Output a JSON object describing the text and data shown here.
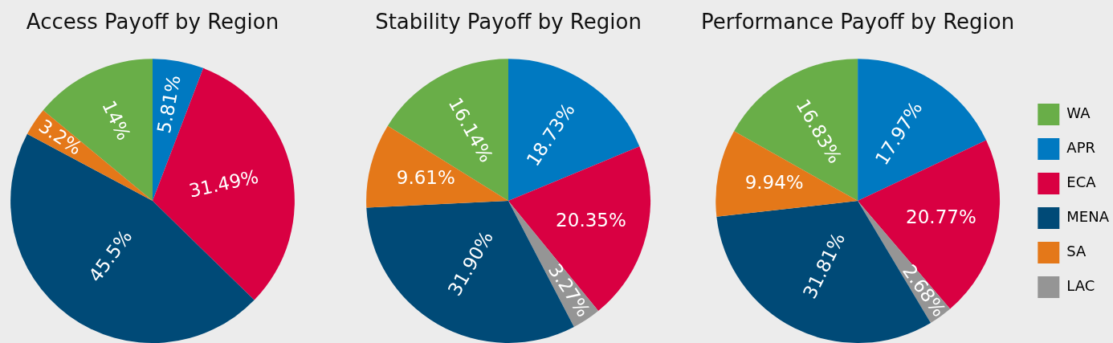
{
  "chart_data": [
    {
      "type": "pie",
      "title": "Access Payoff by Region",
      "categories": [
        null,
        null,
        null,
        null,
        null
      ],
      "values": [
        14,
        5.81,
        31.49,
        45.5,
        3.2
      ],
      "colors": [
        "#69ae48",
        "#0079c1",
        "#d90042",
        "#004a77",
        "#e47819"
      ],
      "value_labels": [
        "14%",
        "5.81%",
        "31.49%",
        "45.5%",
        "3.2%"
      ]
    },
    {
      "type": "pie",
      "title": "Stability Payoff by Region",
      "categories": [
        null,
        null,
        null,
        null,
        null,
        null
      ],
      "values": [
        16.14,
        18.73,
        20.35,
        3.27,
        31.9,
        9.61
      ],
      "colors": [
        "#69ae48",
        "#0079c1",
        "#d90042",
        "#959595",
        "#004a77",
        "#e47819"
      ],
      "value_labels": [
        "16.14%",
        "18.73%",
        "20.35%",
        "3.27%",
        "31.90%",
        "9.61%"
      ]
    },
    {
      "type": "pie",
      "title": "Performance Payoff by Region",
      "categories": [
        "WA",
        "APR",
        "ECA",
        "LAC",
        "MENA",
        "SA"
      ],
      "values": [
        16.83,
        17.97,
        20.77,
        2.68,
        31.81,
        9.94
      ],
      "colors": [
        "#69ae48",
        "#0079c1",
        "#d90042",
        "#959595",
        "#004a77",
        "#e47819"
      ],
      "value_labels": [
        "16.83%",
        "17.97%",
        "20.77%",
        "2.68%",
        "31.81%",
        "9.94%"
      ],
      "legend": "right"
    }
  ]
}
